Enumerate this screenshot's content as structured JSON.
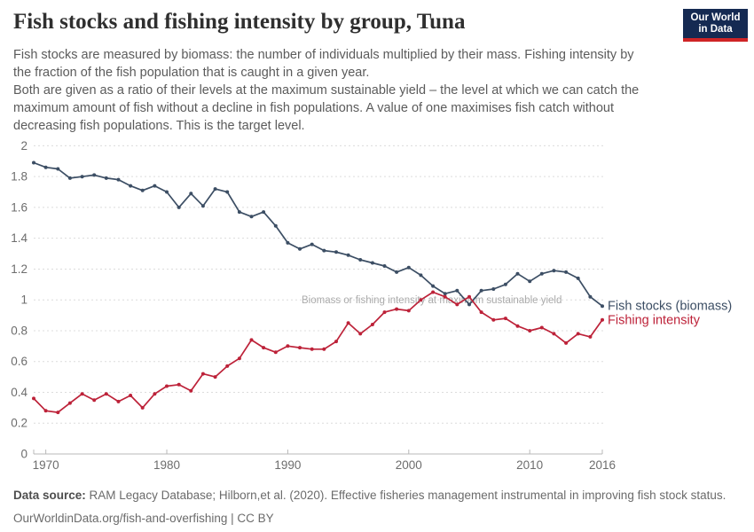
{
  "header": {
    "title": "Fish stocks and fishing intensity by group, Tuna",
    "logo": {
      "line1": "Our World",
      "line2": "in Data",
      "bg_color": "#152a52",
      "accent_color": "#cf2426"
    }
  },
  "subtitle": {
    "paragraphs": [
      "Fish stocks are measured by biomass: the number of individuals multiplied by their mass. Fishing intensity by the fraction of the fish population that is caught in a given year.",
      "Both are given as a ratio of their levels at the maximum sustainable yield – the level at which we can catch the maximum amount of fish without a decline in fish populations. A value of one maximises fish catch without decreasing fish populations. This is the target level."
    ]
  },
  "chart_data": {
    "type": "line",
    "title": "",
    "xlabel": "",
    "ylabel": "",
    "xlim": [
      1969,
      2016
    ],
    "ylim": [
      0,
      2
    ],
    "grid": "dashed-horizontal",
    "legend_position": "end-of-line-labels",
    "x_ticks": [
      1970,
      1980,
      1990,
      2000,
      2010,
      2016
    ],
    "y_ticks": [
      0,
      0.2,
      0.4,
      0.6,
      0.8,
      1,
      1.2,
      1.4,
      1.6,
      1.8,
      2
    ],
    "y_tick_labels": [
      "0",
      "0.2",
      "0.4",
      "0.6",
      "0.8",
      "1",
      "1.2",
      "1.4",
      "1.6",
      "1.8",
      "2"
    ],
    "annotation": "Biomass or fishing intensity at maximum sustainable yield",
    "annotation_y": 1,
    "x": [
      1969,
      1970,
      1971,
      1972,
      1973,
      1974,
      1975,
      1976,
      1977,
      1978,
      1979,
      1980,
      1981,
      1982,
      1983,
      1984,
      1985,
      1986,
      1987,
      1988,
      1989,
      1990,
      1991,
      1992,
      1993,
      1994,
      1995,
      1996,
      1997,
      1998,
      1999,
      2000,
      2001,
      2002,
      2003,
      2004,
      2005,
      2006,
      2007,
      2008,
      2009,
      2010,
      2011,
      2012,
      2013,
      2014,
      2015,
      2016
    ],
    "series": [
      {
        "name": "Fish stocks (biomass)",
        "color": "#3c4e64",
        "values": [
          1.89,
          1.86,
          1.85,
          1.79,
          1.8,
          1.81,
          1.79,
          1.78,
          1.74,
          1.71,
          1.74,
          1.7,
          1.6,
          1.69,
          1.61,
          1.72,
          1.7,
          1.57,
          1.54,
          1.57,
          1.48,
          1.37,
          1.33,
          1.36,
          1.32,
          1.31,
          1.29,
          1.26,
          1.24,
          1.22,
          1.18,
          1.21,
          1.16,
          1.09,
          1.04,
          1.06,
          0.97,
          1.06,
          1.07,
          1.1,
          1.17,
          1.12,
          1.17,
          1.19,
          1.18,
          1.14,
          1.02,
          0.96
        ]
      },
      {
        "name": "Fishing intensity",
        "color": "#bd2239",
        "values": [
          0.36,
          0.28,
          0.27,
          0.33,
          0.39,
          0.35,
          0.39,
          0.34,
          0.38,
          0.3,
          0.39,
          0.44,
          0.45,
          0.41,
          0.52,
          0.5,
          0.57,
          0.62,
          0.74,
          0.69,
          0.66,
          0.7,
          0.69,
          0.68,
          0.68,
          0.73,
          0.85,
          0.78,
          0.84,
          0.92,
          0.94,
          0.93,
          1.0,
          1.05,
          1.02,
          0.97,
          1.02,
          0.92,
          0.87,
          0.88,
          0.83,
          0.8,
          0.82,
          0.78,
          0.72,
          0.78,
          0.76,
          0.87
        ]
      }
    ],
    "style": {
      "gridline_color": "#dcdcdc",
      "axis_color": "#b8b8b8",
      "tick_label_color": "#6d6d6d",
      "annotation_color": "#ababab"
    }
  },
  "footer": {
    "source_label": "Data source:",
    "source_text": " RAM Legacy Database; Hilborn,et al. (2020). Effective fisheries management instrumental in improving fish stock status.",
    "license_line": "OurWorldinData.org/fish-and-overfishing | CC BY"
  }
}
